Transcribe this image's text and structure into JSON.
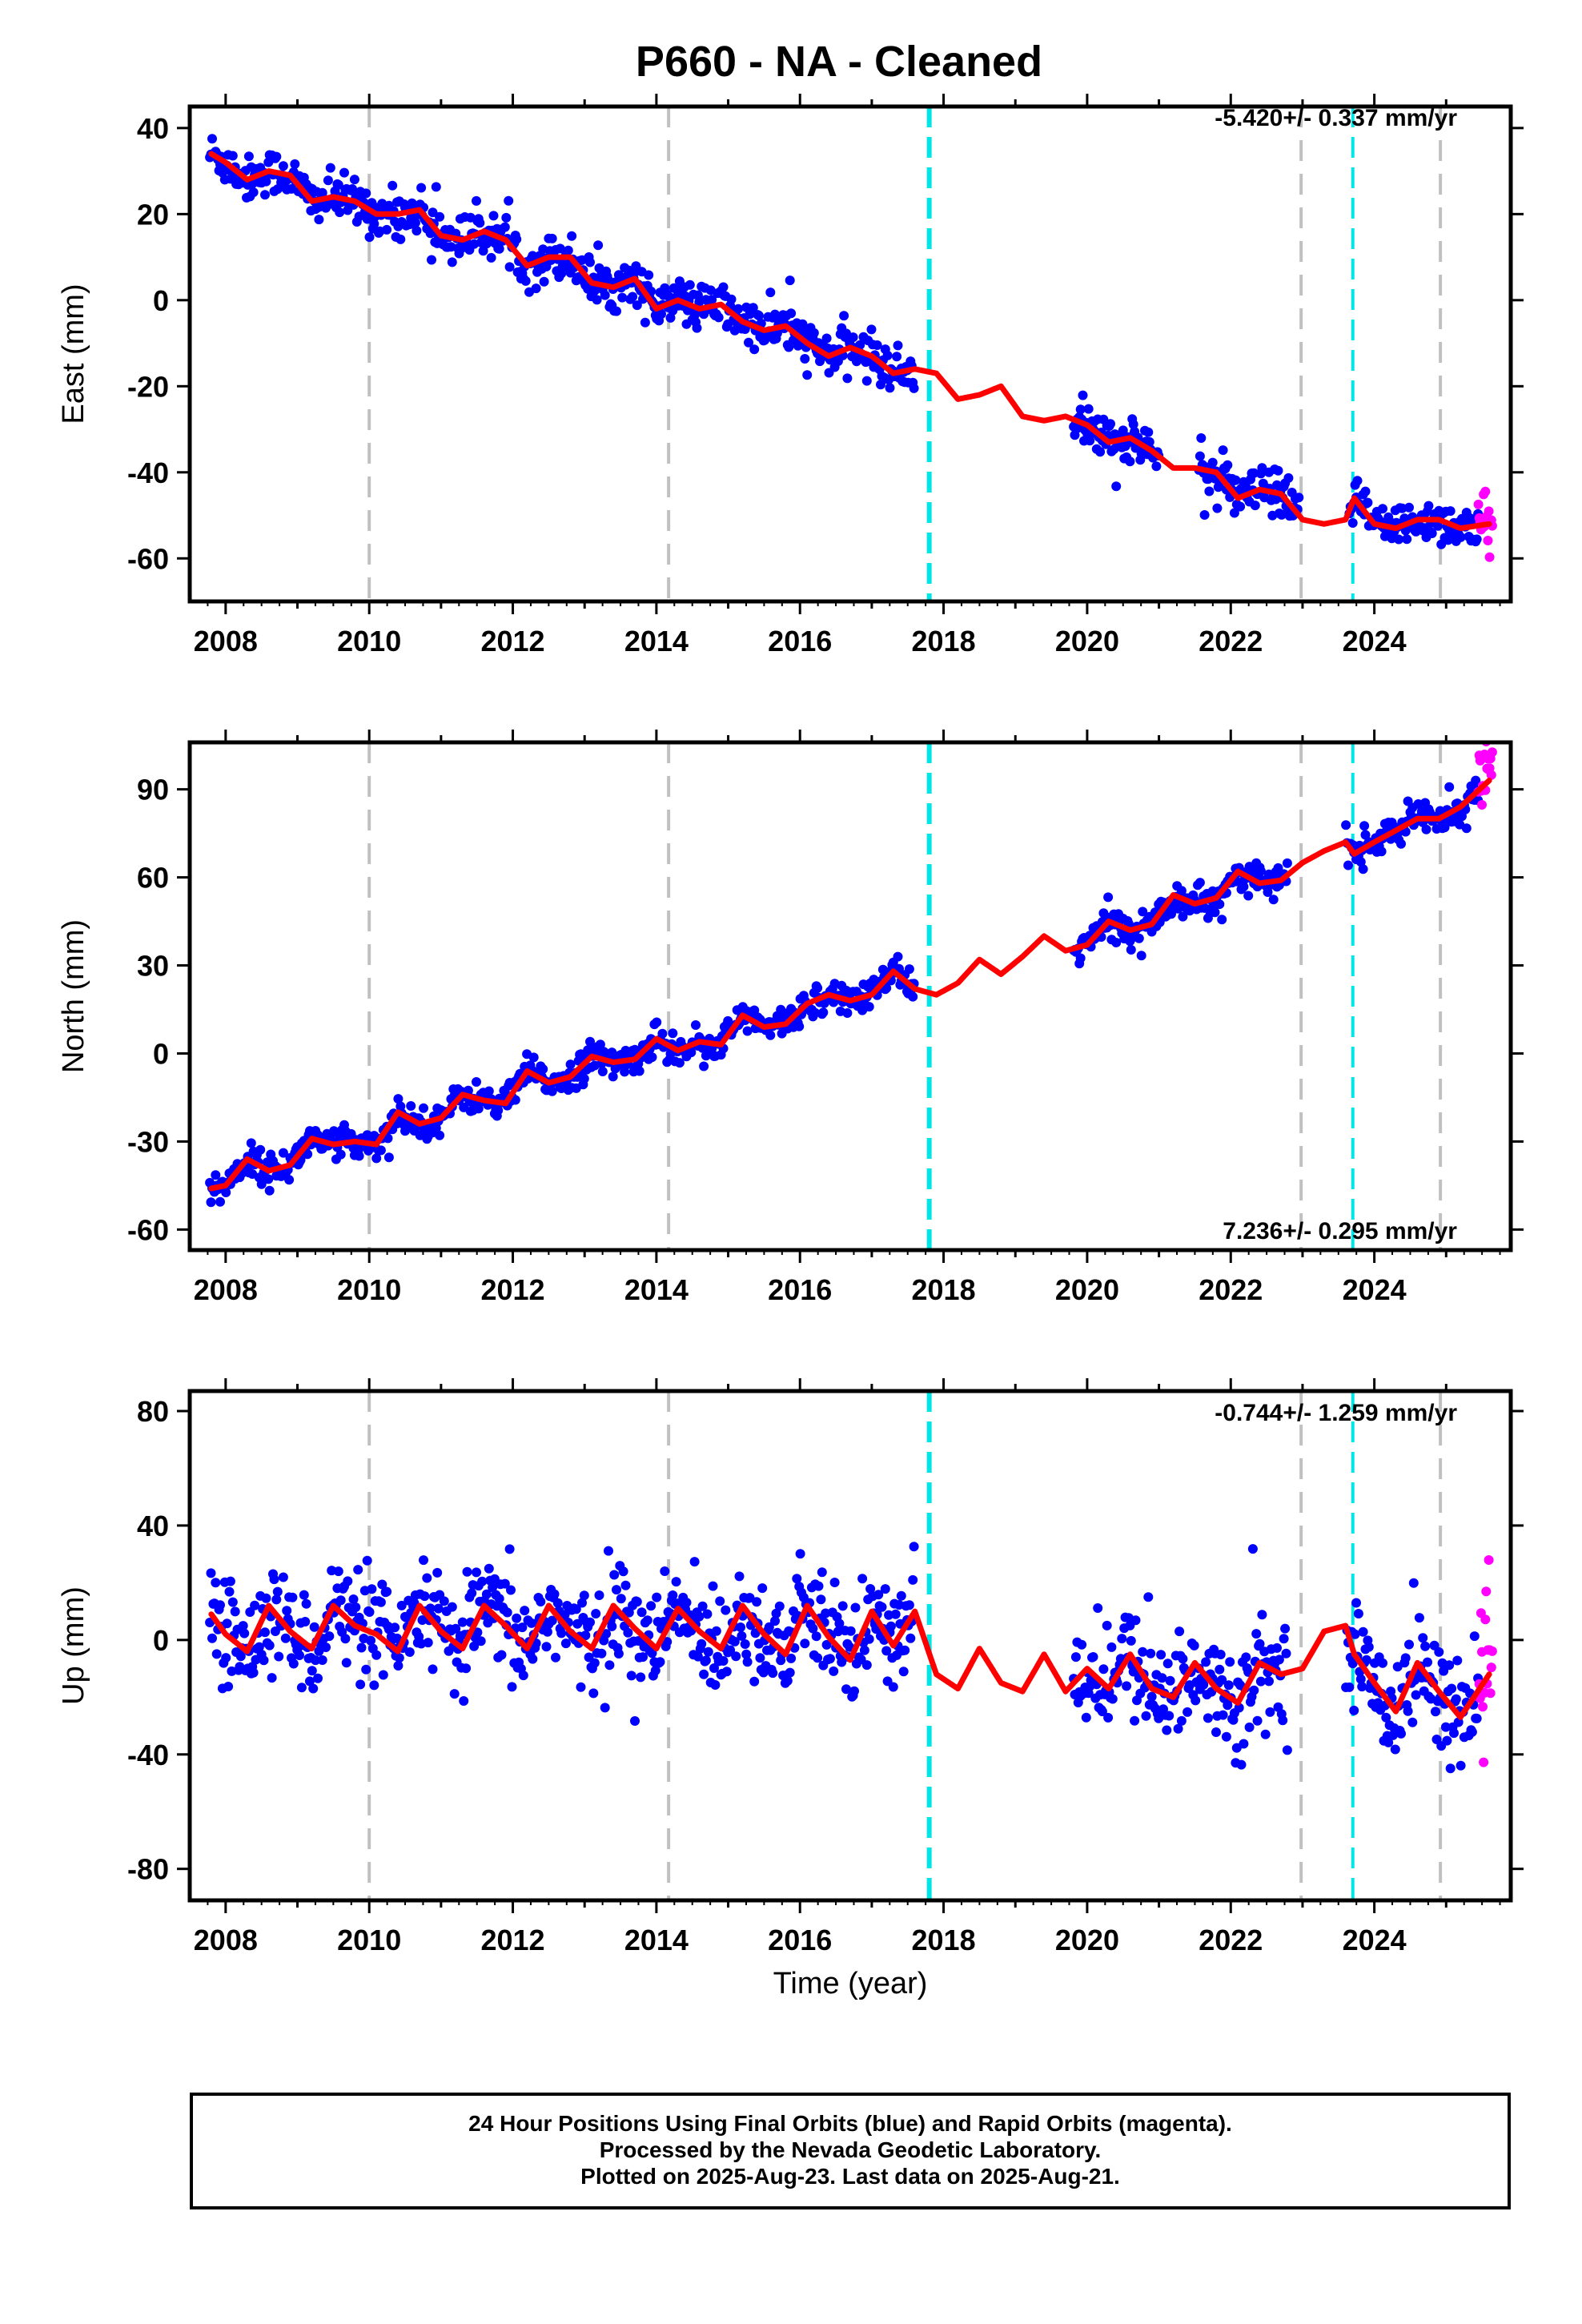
{
  "title": "P660  - NA - Cleaned",
  "xlabel": "Time (year)",
  "caption": [
    "24 Hour Positions Using Final Orbits (blue) and Rapid Orbits (magenta).",
    "Processed by the Nevada Geodetic Laboratory.",
    "Plotted on 2025-Aug-23. Last data on 2025-Aug-21."
  ],
  "colors": {
    "final_orbits": "#0000ff",
    "rapid_orbits": "#ff00ff",
    "model": "#ff0000",
    "steps": "#00e5e5",
    "equipment_changes": "#c0c0c0"
  },
  "chart_data": [
    {
      "type": "scatter",
      "ylabel": "East (mm)",
      "rate_label": "-5.420+/- 0.337 mm/yr",
      "xlim": [
        2007.5,
        2025.9
      ],
      "ylim": [
        -70,
        45
      ],
      "xticks": [
        "2008",
        "2010",
        "2012",
        "2014",
        "2016",
        "2018",
        "2020",
        "2022",
        "2024"
      ],
      "yticks": [
        "40",
        "20",
        "0",
        "-20",
        "-40",
        "-60"
      ],
      "grey_lines": [
        2010.0,
        2014.17,
        2022.98,
        2024.92
      ],
      "cyan_lines": [
        2017.8,
        2023.7
      ],
      "data_gap": [
        2017.6,
        2019.8
      ],
      "rapid_start": 2025.45,
      "series": [
        {
          "type": "line",
          "x": [
            2007.8,
            2008.0,
            2008.3,
            2008.6,
            2008.9,
            2009.2,
            2009.5,
            2009.8,
            2010.1,
            2010.4,
            2010.7,
            2011.0,
            2011.3,
            2011.6,
            2011.9,
            2012.2,
            2012.5,
            2012.8,
            2013.1,
            2013.4,
            2013.7,
            2014.0,
            2014.3,
            2014.6,
            2014.9,
            2015.2,
            2015.5,
            2015.8,
            2016.1,
            2016.4,
            2016.7,
            2017.0,
            2017.3,
            2017.6,
            2017.9,
            2018.2,
            2018.5,
            2018.8,
            2019.1,
            2019.4,
            2019.7,
            2020.0,
            2020.3,
            2020.6,
            2020.9,
            2021.2,
            2021.5,
            2021.8,
            2022.1,
            2022.4,
            2022.7,
            2023.0,
            2023.3,
            2023.6,
            2023.72,
            2024.0,
            2024.3,
            2024.6,
            2024.9,
            2025.2,
            2025.6
          ],
          "y": [
            34,
            32,
            28,
            30,
            29,
            23,
            24,
            23,
            20,
            20,
            21,
            15,
            14,
            16,
            14,
            8,
            10,
            10,
            4,
            3,
            5,
            -2,
            0,
            -2,
            -1,
            -5,
            -7,
            -6,
            -10,
            -13,
            -11,
            -13,
            -17,
            -16,
            -17,
            -23,
            -22,
            -20,
            -27,
            -28,
            -27,
            -29,
            -33,
            -32,
            -35,
            -39,
            -39,
            -40,
            -46,
            -44,
            -45,
            -51,
            -52,
            -51,
            -46,
            -52,
            -53,
            -51,
            -51,
            -53,
            -52
          ]
        }
      ]
    },
    {
      "type": "scatter",
      "ylabel": "North (mm)",
      "rate_label": "7.236+/- 0.295 mm/yr",
      "xlim": [
        2007.5,
        2025.9
      ],
      "ylim": [
        -67,
        106
      ],
      "xticks": [
        "2008",
        "2010",
        "2012",
        "2014",
        "2016",
        "2018",
        "2020",
        "2022",
        "2024"
      ],
      "yticks": [
        "90",
        "60",
        "30",
        "0",
        "-30",
        "-60"
      ],
      "grey_lines": [
        2010.0,
        2014.17,
        2022.98,
        2024.92
      ],
      "cyan_lines": [
        2017.8,
        2023.7
      ],
      "data_gap": [
        2017.6,
        2019.8
      ],
      "rapid_start": 2025.45,
      "series": [
        {
          "type": "line",
          "x": [
            2007.8,
            2008.0,
            2008.3,
            2008.6,
            2008.9,
            2009.2,
            2009.5,
            2009.8,
            2010.1,
            2010.4,
            2010.7,
            2011.0,
            2011.3,
            2011.6,
            2011.9,
            2012.2,
            2012.5,
            2012.8,
            2013.1,
            2013.4,
            2013.7,
            2014.0,
            2014.3,
            2014.6,
            2014.9,
            2015.2,
            2015.5,
            2015.8,
            2016.1,
            2016.4,
            2016.7,
            2017.0,
            2017.3,
            2017.6,
            2017.9,
            2018.2,
            2018.5,
            2018.8,
            2019.1,
            2019.4,
            2019.7,
            2020.0,
            2020.3,
            2020.6,
            2020.9,
            2021.2,
            2021.5,
            2021.8,
            2022.1,
            2022.4,
            2022.7,
            2023.0,
            2023.3,
            2023.6,
            2023.72,
            2024.0,
            2024.3,
            2024.6,
            2024.9,
            2025.2,
            2025.6
          ],
          "y": [
            -46,
            -45,
            -36,
            -40,
            -38,
            -29,
            -31,
            -30,
            -31,
            -20,
            -24,
            -22,
            -14,
            -16,
            -17,
            -6,
            -10,
            -8,
            -1,
            -3,
            -2,
            5,
            1,
            4,
            3,
            13,
            9,
            10,
            17,
            20,
            18,
            20,
            28,
            22,
            20,
            24,
            32,
            27,
            33,
            40,
            35,
            37,
            45,
            42,
            44,
            54,
            51,
            53,
            62,
            58,
            59,
            65,
            69,
            72,
            68,
            72,
            76,
            80,
            80,
            84,
            93
          ]
        }
      ]
    },
    {
      "type": "scatter",
      "ylabel": "Up (mm)",
      "rate_label": "-0.744+/- 1.259 mm/yr",
      "xlim": [
        2007.5,
        2025.9
      ],
      "ylim": [
        -91,
        87
      ],
      "xticks": [
        "2008",
        "2010",
        "2012",
        "2014",
        "2016",
        "2018",
        "2020",
        "2022",
        "2024"
      ],
      "yticks": [
        "80",
        "40",
        "0",
        "-40",
        "-80"
      ],
      "grey_lines": [
        2010.0,
        2014.17,
        2022.98,
        2024.92
      ],
      "cyan_lines": [
        2017.8,
        2023.7
      ],
      "data_gap": [
        2017.6,
        2019.8
      ],
      "rapid_start": 2025.45,
      "series": [
        {
          "type": "line",
          "x": [
            2007.8,
            2008.0,
            2008.3,
            2008.6,
            2008.9,
            2009.2,
            2009.5,
            2009.8,
            2010.1,
            2010.4,
            2010.7,
            2011.0,
            2011.3,
            2011.6,
            2011.9,
            2012.2,
            2012.5,
            2012.8,
            2013.1,
            2013.4,
            2013.7,
            2014.0,
            2014.3,
            2014.6,
            2014.9,
            2015.2,
            2015.5,
            2015.8,
            2016.1,
            2016.4,
            2016.7,
            2017.0,
            2017.3,
            2017.6,
            2017.9,
            2018.2,
            2018.5,
            2018.8,
            2019.1,
            2019.4,
            2019.7,
            2020.0,
            2020.3,
            2020.6,
            2020.9,
            2021.2,
            2021.5,
            2021.8,
            2022.1,
            2022.4,
            2022.7,
            2023.0,
            2023.3,
            2023.6,
            2023.72,
            2024.0,
            2024.3,
            2024.6,
            2024.9,
            2025.2,
            2025.6
          ],
          "y": [
            9,
            2,
            -4,
            12,
            3,
            -3,
            12,
            5,
            2,
            -4,
            12,
            3,
            -3,
            12,
            5,
            -3,
            12,
            3,
            -3,
            12,
            4,
            -3,
            11,
            3,
            -3,
            12,
            2,
            -5,
            12,
            1,
            -7,
            10,
            -2,
            10,
            -12,
            -17,
            -3,
            -15,
            -18,
            -5,
            -18,
            -10,
            -17,
            -5,
            -17,
            -20,
            -8,
            -17,
            -22,
            -8,
            -12,
            -10,
            3,
            5,
            -5,
            -15,
            -25,
            -8,
            -18,
            -27,
            -12
          ]
        }
      ]
    }
  ]
}
